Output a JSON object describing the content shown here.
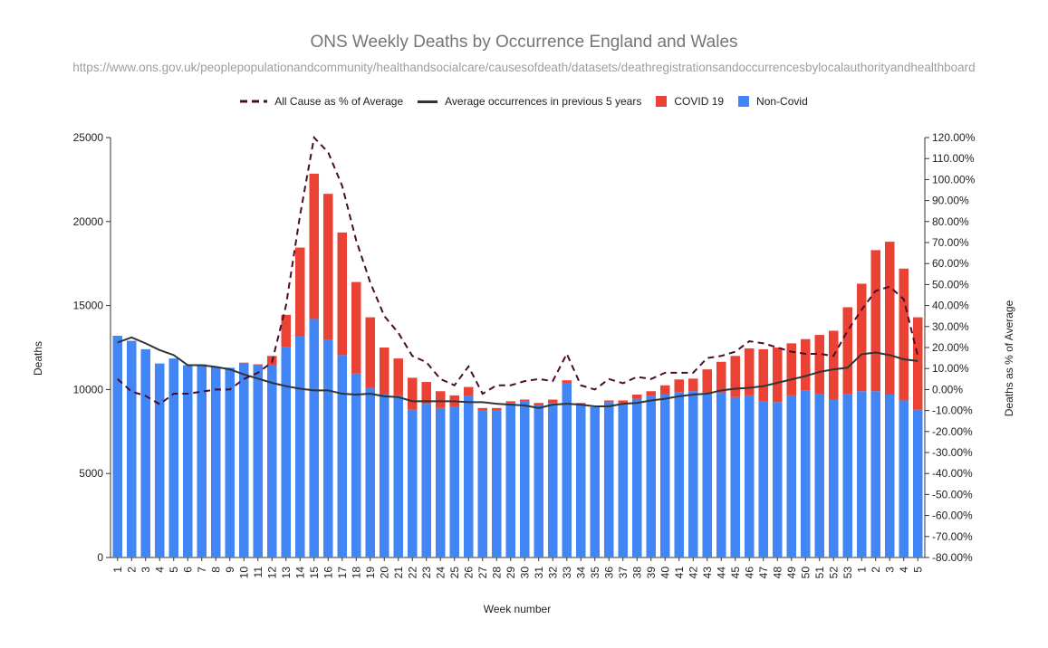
{
  "chart_data": {
    "type": "bar",
    "title": "ONS Weekly Deaths by Occurrence England and Wales",
    "subtitle": "https://www.ons.gov.uk/peoplepopulationandcommunity/healthandsocialcare/causesofdeath/datasets/deathregistrationsandoccurrencesbylocalauthorityandhealthboard",
    "xlabel": "Week number",
    "ylabel": "Deaths",
    "y2label": "Deaths as % of Average",
    "ylim": [
      0,
      25000
    ],
    "y2lim": [
      -80,
      120
    ],
    "yticks": [
      "0",
      "5000",
      "10000",
      "15000",
      "20000",
      "25000"
    ],
    "y2ticks": [
      "-80.00%",
      "-70.00%",
      "-60.00%",
      "-50.00%",
      "-40.00%",
      "-30.00%",
      "-20.00%",
      "-10.00%",
      "0.00%",
      "10.00%",
      "20.00%",
      "30.00%",
      "40.00%",
      "50.00%",
      "60.00%",
      "70.00%",
      "80.00%",
      "90.00%",
      "100.00%",
      "110.00%",
      "120.00%"
    ],
    "categories": [
      "1",
      "2",
      "3",
      "4",
      "5",
      "6",
      "7",
      "8",
      "9",
      "10",
      "11",
      "12",
      "13",
      "14",
      "15",
      "16",
      "17",
      "18",
      "19",
      "20",
      "21",
      "22",
      "23",
      "24",
      "25",
      "26",
      "27",
      "28",
      "29",
      "30",
      "31",
      "32",
      "33",
      "34",
      "35",
      "36",
      "37",
      "38",
      "39",
      "40",
      "41",
      "42",
      "43",
      "44",
      "45",
      "46",
      "47",
      "48",
      "49",
      "50",
      "51",
      "52",
      "53",
      "1",
      "2",
      "3",
      "4",
      "5"
    ],
    "series": [
      {
        "name": "Non-Covid",
        "color": "#4285f4",
        "kind": "bar",
        "values": [
          13200,
          12900,
          12400,
          11550,
          11850,
          11450,
          11500,
          11350,
          11300,
          11550,
          11450,
          11450,
          12550,
          13150,
          14200,
          12950,
          12050,
          10950,
          10100,
          9700,
          9650,
          8800,
          9150,
          8900,
          8950,
          9600,
          8750,
          8750,
          9200,
          9300,
          9050,
          9200,
          10400,
          9050,
          8950,
          9250,
          9200,
          9450,
          9600,
          9700,
          9850,
          9900,
          9800,
          9800,
          9550,
          9650,
          9300,
          9250,
          9650,
          9950,
          9750,
          9400,
          9750,
          9900,
          9900,
          9700,
          9350,
          8800
        ]
      },
      {
        "name": "COVID 19",
        "color": "#ea4335",
        "kind": "bar",
        "values": [
          0,
          0,
          0,
          0,
          0,
          0,
          0,
          0,
          0,
          50,
          50,
          550,
          1900,
          5300,
          8650,
          8700,
          7300,
          5450,
          4200,
          2800,
          2200,
          1900,
          1300,
          1000,
          700,
          550,
          150,
          150,
          100,
          100,
          150,
          200,
          150,
          150,
          0,
          100,
          150,
          250,
          300,
          550,
          750,
          750,
          1400,
          1850,
          2450,
          2800,
          3100,
          3250,
          3100,
          3050,
          3500,
          4100,
          5150,
          6400,
          8400,
          9100,
          7850,
          5500
        ]
      },
      {
        "name": "Average occurrences in previous 5 years",
        "color": "#333333",
        "kind": "line",
        "values": [
          12800,
          13100,
          12750,
          12350,
          12050,
          11450,
          11450,
          11350,
          11200,
          10900,
          10650,
          10400,
          10200,
          10050,
          9950,
          9950,
          9750,
          9700,
          9750,
          9600,
          9550,
          9300,
          9300,
          9300,
          9300,
          9250,
          9250,
          9150,
          9100,
          9050,
          8900,
          9100,
          9150,
          9100,
          9000,
          9000,
          9150,
          9200,
          9350,
          9450,
          9600,
          9700,
          9750,
          9950,
          10050,
          10100,
          10200,
          10400,
          10600,
          10800,
          11050,
          11200,
          11300,
          12100,
          12200,
          12050,
          11800,
          11700
        ]
      },
      {
        "name": "All Cause as % of Average",
        "color": "#4a0d2a",
        "kind": "line",
        "axis": "right",
        "values": [
          5,
          -1,
          -3,
          -7,
          -2,
          -2,
          -1,
          0,
          0,
          5,
          8,
          13,
          40,
          83,
          120,
          113,
          97,
          71,
          51,
          35,
          27,
          16,
          13,
          5,
          2,
          11,
          -2,
          2,
          2,
          4,
          5,
          4,
          17,
          2,
          0,
          5,
          3,
          6,
          5,
          8,
          8,
          8,
          15,
          16,
          18,
          23,
          22,
          20,
          18,
          17,
          17,
          16,
          28,
          38,
          47,
          49,
          43,
          16
        ]
      }
    ]
  },
  "legend": [
    {
      "label": "All Cause as % of Average",
      "color": "#4a0d2a",
      "style": "dashed"
    },
    {
      "label": "Average occurrences in previous 5 years",
      "color": "#333333",
      "style": "line"
    },
    {
      "label": "COVID 19",
      "color": "#ea4335",
      "style": "box"
    },
    {
      "label": "Non-Covid",
      "color": "#4285f4",
      "style": "box"
    }
  ]
}
